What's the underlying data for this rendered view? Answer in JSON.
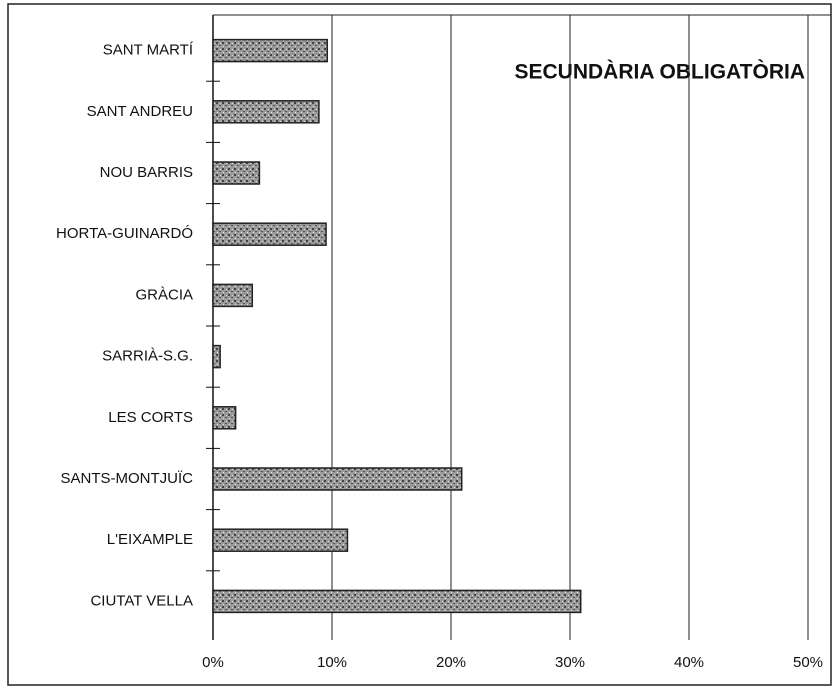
{
  "chart_data": {
    "type": "bar",
    "orientation": "horizontal",
    "title": "SECUNDÀRIA OBLIGATÒRIA",
    "categories": [
      "SANT MARTÍ",
      "SANT ANDREU",
      "NOU BARRIS",
      "HORTA-GUINARDÓ",
      "GRÀCIA",
      "SARRIÀ-S.G.",
      "LES CORTS",
      "SANTS-MONTJUÏC",
      "L'EIXAMPLE",
      "CIUTAT VELLA"
    ],
    "values": [
      9.6,
      8.9,
      3.9,
      9.5,
      3.3,
      0.6,
      1.9,
      20.9,
      11.3,
      30.9
    ],
    "color": "#8a8a8a",
    "xlim": [
      0,
      50
    ],
    "xticks": [
      {
        "value": 0,
        "label": "0%"
      },
      {
        "value": 10,
        "label": "10%"
      },
      {
        "value": 20,
        "label": "20%"
      },
      {
        "value": 30,
        "label": "30%"
      },
      {
        "value": 40,
        "label": "40%"
      },
      {
        "value": 50,
        "label": "50%"
      }
    ],
    "grid": true
  }
}
